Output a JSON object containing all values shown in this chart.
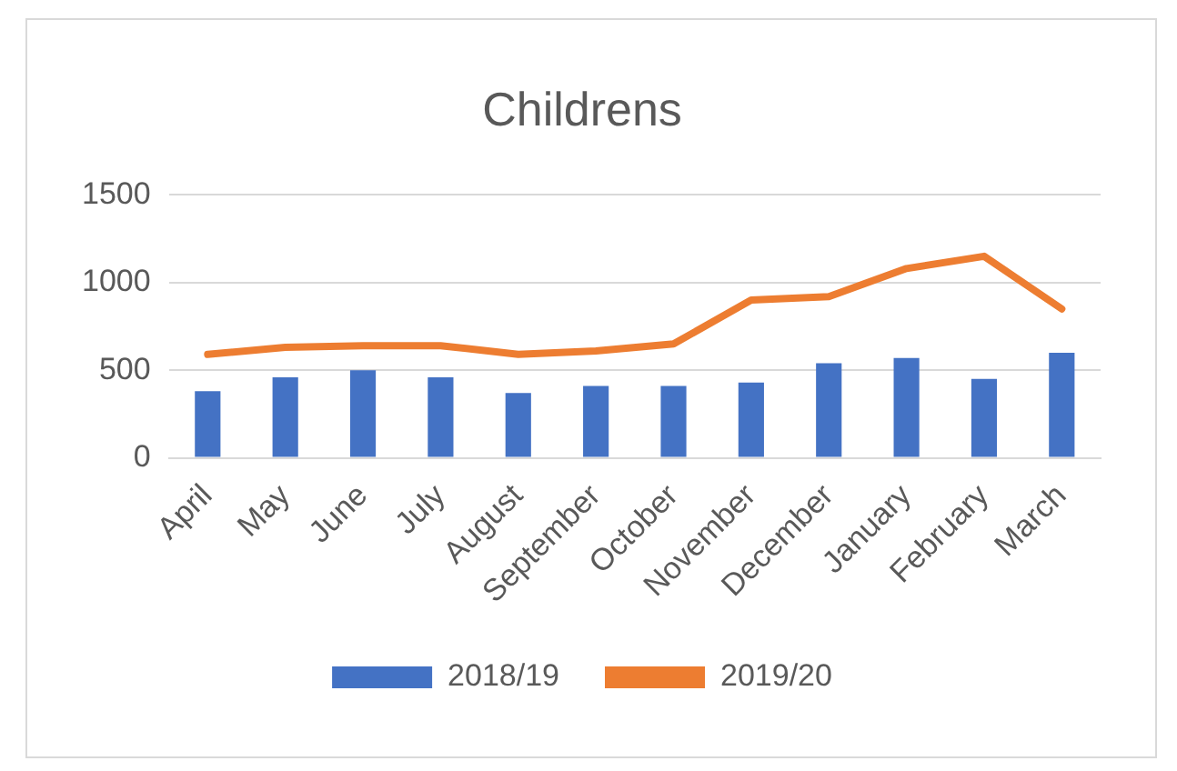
{
  "chart_data": {
    "type": "bar",
    "title": "Childrens",
    "categories": [
      "April",
      "May",
      "June",
      "July",
      "August",
      "September",
      "October",
      "November",
      "December",
      "January",
      "February",
      "March"
    ],
    "series": [
      {
        "name": "2018/19",
        "color": "#4472c4",
        "values": [
          380,
          460,
          500,
          460,
          370,
          410,
          410,
          430,
          540,
          570,
          450,
          600
        ]
      },
      {
        "name": "2019/20",
        "type": "line",
        "color": "#ed7d31",
        "values": [
          590,
          630,
          640,
          640,
          590,
          610,
          650,
          900,
          920,
          1080,
          1150,
          850
        ]
      }
    ],
    "ylim": [
      0,
      1500
    ],
    "yticks": [
      0,
      500,
      1000,
      1500
    ],
    "grid": "y",
    "legend": "bottom",
    "marker": "none"
  }
}
